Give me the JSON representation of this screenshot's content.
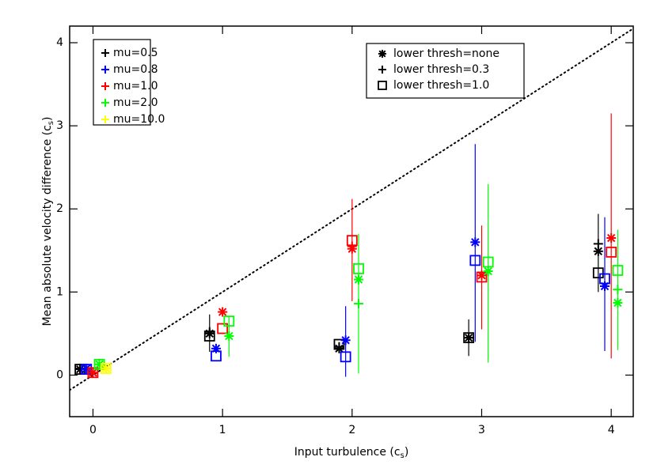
{
  "chart_data": {
    "type": "scatter",
    "x_label": [
      "Input turbulence (c",
      "s",
      ")"
    ],
    "y_label": [
      "Mean absolute velocity difference (c",
      "s",
      ")"
    ],
    "xlim": [
      -0.18,
      4.17
    ],
    "ylim": [
      -0.5,
      4.2
    ],
    "xticks": [
      0,
      1,
      2,
      3,
      4
    ],
    "yticks": [
      0,
      1,
      2,
      3,
      4
    ],
    "identity_line": true,
    "marker_legend": [
      {
        "label": "lower thresh=none",
        "marker": "asterisk"
      },
      {
        "label": "lower thresh=0.3",
        "marker": "plus"
      },
      {
        "label": "lower thresh=1.0",
        "marker": "square"
      }
    ],
    "series": [
      {
        "name": "mu=0.5",
        "color": "#000000",
        "points": [
          {
            "x": -0.1,
            "y": 0.07,
            "marker": "asterisk"
          },
          {
            "x": -0.1,
            "y": 0.08,
            "marker": "plus"
          },
          {
            "x": -0.1,
            "y": 0.07,
            "marker": "square"
          },
          {
            "x": 0.9,
            "y": 0.5,
            "marker": "asterisk"
          },
          {
            "x": 0.9,
            "y": 0.52,
            "marker": "plus"
          },
          {
            "x": 0.9,
            "y": 0.47,
            "marker": "square"
          },
          {
            "x": 1.9,
            "y": 0.32,
            "marker": "asterisk"
          },
          {
            "x": 1.9,
            "y": 0.34,
            "marker": "plus"
          },
          {
            "x": 1.9,
            "y": 0.37,
            "marker": "square"
          },
          {
            "x": 2.9,
            "y": 0.45,
            "marker": "asterisk"
          },
          {
            "x": 2.9,
            "y": 0.45,
            "marker": "plus"
          },
          {
            "x": 2.9,
            "y": 0.45,
            "marker": "square"
          },
          {
            "x": 3.9,
            "y": 1.49,
            "marker": "asterisk"
          },
          {
            "x": 3.9,
            "y": 1.58,
            "marker": "plus"
          },
          {
            "x": 3.9,
            "y": 1.23,
            "marker": "square"
          }
        ],
        "error_bars": [
          {
            "x": 0.9,
            "low": 0.28,
            "high": 0.73
          },
          {
            "x": 2.9,
            "low": 0.23,
            "high": 0.67
          },
          {
            "x": 3.9,
            "low": 1.0,
            "high": 1.94
          }
        ]
      },
      {
        "name": "mu=0.8",
        "color": "#0000ff",
        "points": [
          {
            "x": -0.05,
            "y": 0.08,
            "marker": "asterisk"
          },
          {
            "x": -0.05,
            "y": 0.07,
            "marker": "plus"
          },
          {
            "x": -0.05,
            "y": 0.07,
            "marker": "square"
          },
          {
            "x": 0.95,
            "y": 0.32,
            "marker": "asterisk"
          },
          {
            "x": 0.95,
            "y": 0.23,
            "marker": "square"
          },
          {
            "x": 1.95,
            "y": 0.42,
            "marker": "asterisk"
          },
          {
            "x": 1.95,
            "y": 0.22,
            "marker": "square"
          },
          {
            "x": 2.95,
            "y": 1.6,
            "marker": "asterisk"
          },
          {
            "x": 2.95,
            "y": 1.38,
            "marker": "square"
          },
          {
            "x": 3.95,
            "y": 1.07,
            "marker": "asterisk"
          },
          {
            "x": 3.95,
            "y": 1.16,
            "marker": "square"
          }
        ],
        "error_bars": [
          {
            "x": 1.95,
            "low": -0.02,
            "high": 0.83
          },
          {
            "x": 2.95,
            "low": 0.4,
            "high": 2.78
          },
          {
            "x": 3.95,
            "low": 0.29,
            "high": 1.9
          }
        ]
      },
      {
        "name": "mu=1.0",
        "color": "#ff0000",
        "points": [
          {
            "x": 0.0,
            "y": 0.03,
            "marker": "asterisk"
          },
          {
            "x": 0.0,
            "y": 0.03,
            "marker": "square"
          },
          {
            "x": 1.0,
            "y": 0.76,
            "marker": "asterisk"
          },
          {
            "x": 1.0,
            "y": 0.56,
            "marker": "square"
          },
          {
            "x": 2.0,
            "y": 1.52,
            "marker": "asterisk"
          },
          {
            "x": 2.0,
            "y": 1.55,
            "marker": "plus"
          },
          {
            "x": 2.0,
            "y": 1.62,
            "marker": "square"
          },
          {
            "x": 3.0,
            "y": 1.2,
            "marker": "asterisk"
          },
          {
            "x": 3.0,
            "y": 1.18,
            "marker": "square"
          },
          {
            "x": 4.0,
            "y": 1.65,
            "marker": "asterisk"
          },
          {
            "x": 4.0,
            "y": 1.48,
            "marker": "square"
          }
        ],
        "error_bars": [
          {
            "x": 2.0,
            "low": 0.89,
            "high": 2.12
          },
          {
            "x": 3.0,
            "low": 0.55,
            "high": 1.8
          },
          {
            "x": 4.0,
            "low": 0.2,
            "high": 3.15
          }
        ]
      },
      {
        "name": "mu=2.0",
        "color": "#00ff00",
        "points": [
          {
            "x": 0.05,
            "y": 0.13,
            "marker": "asterisk"
          },
          {
            "x": 0.05,
            "y": 0.13,
            "marker": "square"
          },
          {
            "x": 1.05,
            "y": 0.47,
            "marker": "asterisk"
          },
          {
            "x": 1.05,
            "y": 0.65,
            "marker": "square"
          },
          {
            "x": 2.05,
            "y": 1.15,
            "marker": "asterisk"
          },
          {
            "x": 2.05,
            "y": 0.86,
            "marker": "plus"
          },
          {
            "x": 2.05,
            "y": 1.28,
            "marker": "square"
          },
          {
            "x": 3.05,
            "y": 1.25,
            "marker": "asterisk"
          },
          {
            "x": 3.05,
            "y": 1.36,
            "marker": "square"
          },
          {
            "x": 4.05,
            "y": 0.87,
            "marker": "asterisk"
          },
          {
            "x": 4.05,
            "y": 1.03,
            "marker": "plus"
          },
          {
            "x": 4.05,
            "y": 1.26,
            "marker": "square"
          }
        ],
        "error_bars": [
          {
            "x": 1.05,
            "low": 0.22,
            "high": 0.7
          },
          {
            "x": 2.05,
            "low": 0.02,
            "high": 1.7
          },
          {
            "x": 3.05,
            "low": 0.15,
            "high": 2.3
          },
          {
            "x": 4.05,
            "low": 0.3,
            "high": 1.75
          }
        ]
      },
      {
        "name": "mu=10.0",
        "color": "#ffff00",
        "points": [
          {
            "x": 0.1,
            "y": 0.08,
            "marker": "asterisk"
          },
          {
            "x": 0.1,
            "y": 0.08,
            "marker": "plus"
          },
          {
            "x": 0.1,
            "y": 0.08,
            "marker": "square"
          }
        ],
        "error_bars": []
      }
    ]
  }
}
